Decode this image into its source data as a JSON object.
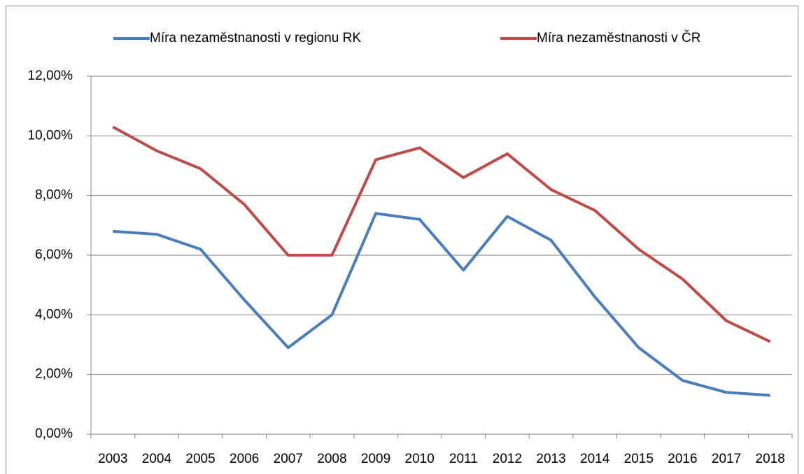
{
  "chart_data": {
    "type": "line",
    "categories": [
      "2003",
      "2004",
      "2005",
      "2006",
      "2007",
      "2008",
      "2009",
      "2010",
      "2011",
      "2012",
      "2013",
      "2014",
      "2015",
      "2016",
      "2017",
      "2018"
    ],
    "series": [
      {
        "name": "Míra nezaměstnanosti v regionu RK",
        "color": "#4a7ebb",
        "values": [
          6.8,
          6.7,
          6.2,
          4.5,
          2.9,
          4.0,
          7.4,
          7.2,
          5.5,
          7.3,
          6.5,
          4.6,
          2.9,
          1.8,
          1.4,
          1.3
        ]
      },
      {
        "name": "Míra nezaměstnanosti v ČR",
        "color": "#be4b48",
        "values": [
          10.3,
          9.5,
          8.9,
          7.7,
          6.0,
          6.0,
          9.2,
          9.6,
          8.6,
          9.4,
          8.2,
          7.5,
          6.2,
          5.2,
          3.8,
          3.1
        ]
      }
    ],
    "ylim": [
      0,
      12
    ],
    "yticks": [
      {
        "value": 0,
        "label": "0,00%"
      },
      {
        "value": 2,
        "label": "2,00%"
      },
      {
        "value": 4,
        "label": "4,00%"
      },
      {
        "value": 6,
        "label": "6,00%"
      },
      {
        "value": 8,
        "label": "8,00%"
      },
      {
        "value": 10,
        "label": "10,00%"
      },
      {
        "value": 12,
        "label": "12,00%"
      }
    ],
    "grid": true,
    "legend": "top"
  }
}
